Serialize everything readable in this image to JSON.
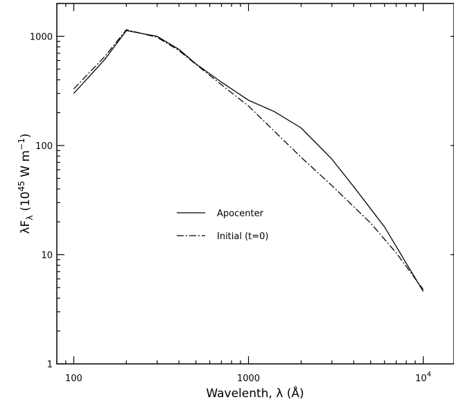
{
  "chart_data": {
    "type": "line",
    "title": "",
    "xlabel": "Wavelenth, λ  (Å)",
    "ylabel": "λF",
    "ylabel_sub": "λ",
    "ylabel_units": "(10",
    "ylabel_exp": "45",
    "ylabel_units2": " W m",
    "ylabel_exp2": "−1",
    "ylabel_close": ")",
    "xscale": "log",
    "yscale": "log",
    "xlim": [
      80,
      15000
    ],
    "ylim": [
      1,
      2000
    ],
    "grid": false,
    "legend_position": "center-left",
    "x_ticks": [
      {
        "value": 100,
        "label": "100"
      },
      {
        "value": 1000,
        "label": "1000"
      },
      {
        "value": 10000,
        "label": "10",
        "exp": "4"
      }
    ],
    "y_ticks": [
      {
        "value": 1,
        "label": "1"
      },
      {
        "value": 10,
        "label": "10"
      },
      {
        "value": 100,
        "label": "100"
      },
      {
        "value": 1000,
        "label": "1000"
      }
    ],
    "series": [
      {
        "name": "Apocenter",
        "style": "solid",
        "x": [
          100,
          150,
          200,
          300,
          400,
          500,
          700,
          1000,
          1400,
          2000,
          3000,
          4000,
          6000,
          10000
        ],
        "y": [
          300,
          610,
          1130,
          1000,
          760,
          560,
          380,
          260,
          205,
          145,
          75,
          42,
          18,
          4.6
        ]
      },
      {
        "name": "Initial (t=0)",
        "style": "dash-dot",
        "x": [
          100,
          150,
          200,
          300,
          400,
          500,
          700,
          1000,
          2000,
          3000,
          5000,
          7000,
          10000
        ],
        "y": [
          330,
          650,
          1150,
          980,
          740,
          555,
          360,
          230,
          78,
          43,
          19.5,
          10.4,
          4.8
        ]
      }
    ]
  }
}
